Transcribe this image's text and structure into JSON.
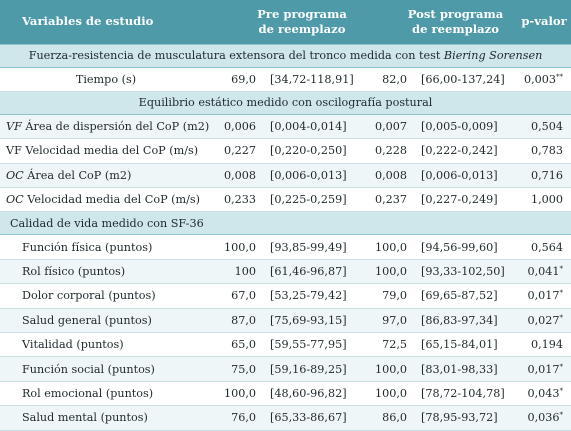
{
  "header": {
    "variables": "Variables de estudio",
    "pre_line1": "Pre programa",
    "pre_line2": "de reemplazo",
    "post_line1": "Post programa",
    "post_line2": "de reemplazo",
    "pvalue": "p-valor"
  },
  "sections": {
    "s1": "Fuerza-resistencia de musculatura extensora del tronco medida con test ",
    "s1_italic": "Biering Sorensen",
    "s2": "Equilibrio estático medido con oscilografía postural",
    "s3": "Calidad de vida medido con SF-36"
  },
  "rows": [
    {
      "prefix": "",
      "label": "Tiempo (s)",
      "pre": "69,0",
      "pre_ci": "[34,72-118,91]",
      "post": "82,0",
      "post_ci": "[66,00-137,24]",
      "p": "0,003",
      "sig": "**"
    },
    {
      "prefix": "VF",
      "label": " Área de dispersión del CoP (m2)",
      "pre": "0,006",
      "pre_ci": "[0,004-0,014]",
      "post": "0,007",
      "post_ci": "[0,005-0,009]",
      "p": "0,504",
      "sig": ""
    },
    {
      "prefix": "",
      "label": "VF Velocidad media del CoP (m/s)",
      "pre": "0,227",
      "pre_ci": "[0,220-0,250]",
      "post": "0,228",
      "post_ci": "[0,222-0,242]",
      "p": "0,783",
      "sig": ""
    },
    {
      "prefix": "OC",
      "label": " Área del CoP (m2)",
      "pre": "0,008",
      "pre_ci": "[0,006-0,013]",
      "post": "0,008",
      "post_ci": "[0,006-0,013]",
      "p": "0,716",
      "sig": ""
    },
    {
      "prefix": "OC",
      "label": " Velocidad media del CoP (m/s)",
      "pre": "0,233",
      "pre_ci": "[0,225-0,259]",
      "post": "0,237",
      "post_ci": "[0,227-0,249]",
      "p": "1,000",
      "sig": ""
    },
    {
      "prefix": "",
      "label": "Función física (puntos)",
      "pre": "100,0",
      "pre_ci": "[93,85-99,49]",
      "post": "100,0",
      "post_ci": "[94,56-99,60]",
      "p": "0,564",
      "sig": ""
    },
    {
      "prefix": "",
      "label": "Rol físico (puntos)",
      "pre": "100",
      "pre_ci": "[61,46-96,87]",
      "post": "100,0",
      "post_ci": "[93,33-102,50]",
      "p": "0,041",
      "sig": "*"
    },
    {
      "prefix": "",
      "label": "Dolor corporal (puntos)",
      "pre": "67,0",
      "pre_ci": "[53,25-79,42]",
      "post": "79,0",
      "post_ci": "[69,65-87,52]",
      "p": "0,017",
      "sig": "*"
    },
    {
      "prefix": "",
      "label": "Salud general (puntos)",
      "pre": "87,0",
      "pre_ci": "[75,69-93,15]",
      "post": "97,0",
      "post_ci": "[86,83-97,34]",
      "p": "0,027",
      "sig": "*"
    },
    {
      "prefix": "",
      "label": "Vitalidad (puntos)",
      "pre": "65,0",
      "pre_ci": "[59,55-77,95]",
      "post": "72,5",
      "post_ci": "[65,15-84,01]",
      "p": "0,194",
      "sig": ""
    },
    {
      "prefix": "",
      "label": "Función social (puntos)",
      "pre": "75,0",
      "pre_ci": "[59,16-89,25]",
      "post": "100,0",
      "post_ci": "[83,01-98,33]",
      "p": "0,017",
      "sig": "*"
    },
    {
      "prefix": "",
      "label": "Rol emocional (puntos)",
      "pre": "100,0",
      "pre_ci": "[48,60-96,82]",
      "post": "100,0",
      "post_ci": "[78,72-104,78]",
      "p": "0,043",
      "sig": "*"
    },
    {
      "prefix": "",
      "label": "Salud mental (puntos)",
      "pre": "76,0",
      "pre_ci": "[65,33-86,67]",
      "post": "86,0",
      "post_ci": "[78,95-93,72]",
      "p": "0,036",
      "sig": "*"
    }
  ]
}
